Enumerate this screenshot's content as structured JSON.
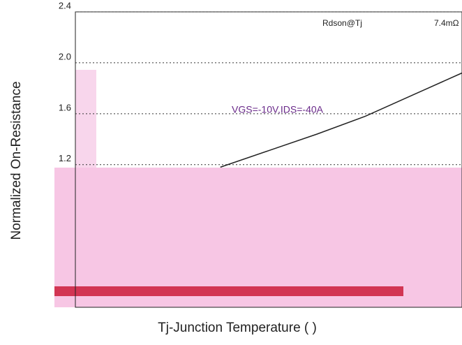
{
  "chart_data": {
    "type": "line",
    "x_label": "Tj-Junction Temperature (   )",
    "y_label": "Normalized On-Resistance",
    "annotations": [
      "Rdson@Tj",
      "7.4mΩ",
      "VGS=-10V,IDS=-40A"
    ],
    "x": [
      25,
      50,
      75,
      100,
      125,
      150
    ],
    "series": [
      {
        "color": "#222222",
        "values": [
          1.18,
          1.31,
          1.44,
          1.58,
          1.75,
          1.92
        ]
      }
    ],
    "xlim": [
      -50,
      150
    ],
    "ylim": [
      0.2,
      2.4
    ],
    "yticks": [
      {
        "value": 1.2,
        "label": "1.2"
      },
      {
        "value": 1.6,
        "label": "1.6"
      },
      {
        "value": 2.0,
        "label": "2.0"
      },
      {
        "value": 2.4,
        "label": "2.4"
      }
    ],
    "grid": true
  }
}
